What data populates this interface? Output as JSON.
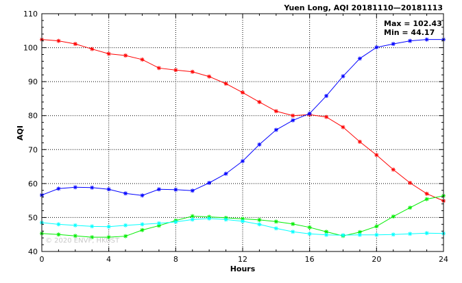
{
  "chart_data": {
    "type": "line",
    "title": "Yuen Long, AQI 20181110—20181113",
    "xlabel": "Hours",
    "ylabel": "AQI",
    "xlim": [
      0,
      24
    ],
    "ylim": [
      40,
      110
    ],
    "xticks": [
      0,
      4,
      8,
      12,
      16,
      20,
      24
    ],
    "yticks": [
      40,
      50,
      60,
      70,
      80,
      90,
      100,
      110
    ],
    "grid": true,
    "marker": "asterisk",
    "stats": {
      "max_text": "Max = 102.43",
      "min_text": "Min =  44.17"
    },
    "watermark": "© 2020 ENVF, HKUST",
    "x": [
      0,
      1,
      2,
      3,
      4,
      5,
      6,
      7,
      8,
      9,
      10,
      11,
      12,
      13,
      14,
      15,
      16,
      17,
      18,
      19,
      20,
      21,
      22,
      23,
      24
    ],
    "series": [
      {
        "color": "#ff0000",
        "values": [
          102.4,
          102.0,
          101.1,
          99.6,
          98.2,
          97.7,
          96.5,
          94.0,
          93.4,
          92.9,
          91.5,
          89.4,
          86.8,
          84.0,
          81.3,
          80.0,
          80.3,
          79.6,
          76.6,
          72.3,
          68.4,
          64.1,
          60.2,
          57.0,
          54.9
        ]
      },
      {
        "color": "#0000ff",
        "values": [
          56.6,
          58.5,
          58.9,
          58.8,
          58.3,
          57.1,
          56.5,
          58.3,
          58.2,
          57.9,
          60.2,
          62.9,
          66.6,
          71.5,
          75.8,
          78.6,
          80.6,
          85.8,
          91.6,
          96.8,
          100.1,
          101.1,
          102.0,
          102.4,
          102.4
        ]
      },
      {
        "color": "#00ee00",
        "values": [
          45.3,
          45.0,
          44.6,
          44.2,
          44.2,
          44.5,
          46.3,
          47.6,
          49.1,
          50.4,
          50.2,
          49.9,
          49.6,
          49.3,
          48.8,
          48.1,
          47.1,
          45.8,
          44.6,
          45.7,
          47.4,
          50.3,
          52.9,
          55.4,
          56.4
        ]
      },
      {
        "color": "#00ffff",
        "values": [
          48.5,
          48.0,
          47.7,
          47.4,
          47.3,
          47.7,
          48.0,
          48.3,
          48.7,
          49.4,
          49.7,
          49.4,
          48.9,
          48.0,
          46.8,
          45.8,
          45.2,
          44.9,
          44.8,
          44.9,
          44.9,
          45.0,
          45.2,
          45.4,
          45.3
        ]
      }
    ]
  }
}
